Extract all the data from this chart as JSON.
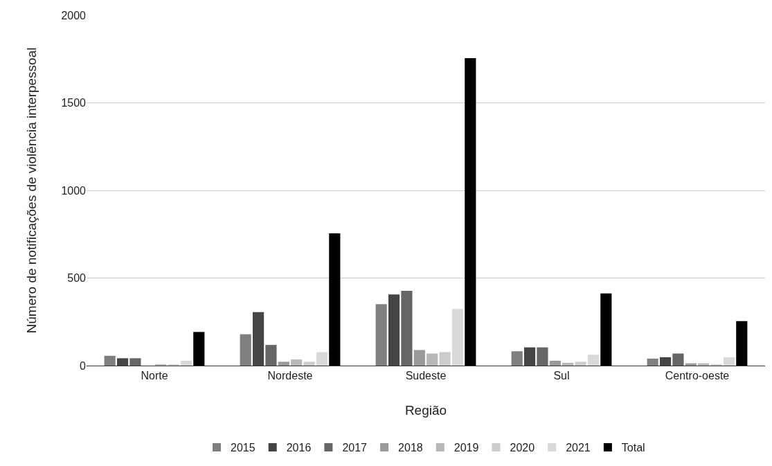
{
  "chart_data": {
    "type": "bar",
    "xlabel": "Região",
    "ylabel": "Número de notificações de violência interpessoal",
    "categories": [
      "Norte",
      "Nordeste",
      "Sudeste",
      "Sul",
      "Centro-oeste"
    ],
    "series": [
      {
        "name": "2015",
        "color": "#7f7f7f",
        "values": [
          56,
          179,
          351,
          82,
          40
        ]
      },
      {
        "name": "2016",
        "color": "#444444",
        "values": [
          42,
          305,
          406,
          104,
          48
        ]
      },
      {
        "name": "2017",
        "color": "#666666",
        "values": [
          42,
          118,
          427,
          104,
          69
        ]
      },
      {
        "name": "2018",
        "color": "#999999",
        "values": [
          0,
          22,
          89,
          28,
          13
        ]
      },
      {
        "name": "2019",
        "color": "#b7b7b7",
        "values": [
          8,
          35,
          69,
          16,
          13
        ]
      },
      {
        "name": "2020",
        "color": "#cccccc",
        "values": [
          8,
          22,
          77,
          22,
          5
        ]
      },
      {
        "name": "2021",
        "color": "#d9d9d9",
        "values": [
          28,
          77,
          323,
          62,
          48
        ]
      },
      {
        "name": "Total",
        "color": "#000000",
        "values": [
          192,
          755,
          1755,
          412,
          254
        ]
      }
    ],
    "ylim": [
      0,
      2000
    ],
    "yticks": [
      0,
      500,
      1000,
      1500,
      2000
    ],
    "grid": "y",
    "legend": "bottom"
  }
}
